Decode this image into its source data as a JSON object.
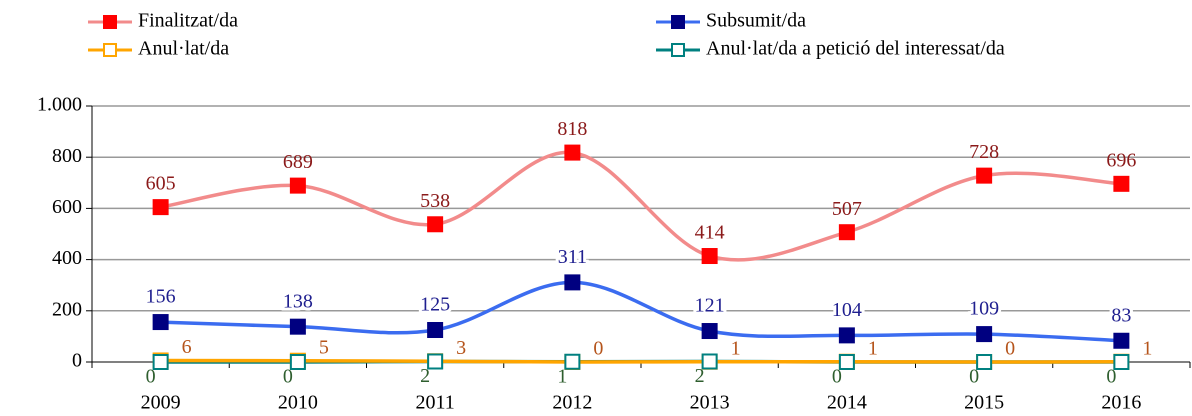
{
  "chart_data": {
    "type": "line",
    "categories": [
      "2009",
      "2010",
      "2011",
      "2012",
      "2013",
      "2014",
      "2015",
      "2016"
    ],
    "series": [
      {
        "name": "Finalitzat/da",
        "color": "#f28b8b",
        "marker_fill": "#ff0000",
        "marker_stroke": "#ff0000",
        "label_color": "#8b1a1a",
        "values": [
          605,
          689,
          538,
          818,
          414,
          507,
          728,
          696
        ]
      },
      {
        "name": "Subsumit/da",
        "color": "#3b6cf0",
        "marker_fill": "#000080",
        "marker_stroke": "#000080",
        "label_color": "#1f1f8f",
        "values": [
          156,
          138,
          125,
          311,
          121,
          104,
          109,
          83
        ]
      },
      {
        "name": "Anul·lat/da",
        "color": "#ffa500",
        "marker_fill": "#ffffff",
        "marker_stroke": "#ffa500",
        "label_color": "#b5541b",
        "values": [
          6,
          5,
          3,
          0,
          1,
          1,
          0,
          1
        ]
      },
      {
        "name": "Anul·lat/da a petició del interessat/da",
        "color": "#008080",
        "marker_fill": "#ffffff",
        "marker_stroke": "#008080",
        "label_color": "#2e5e2e",
        "values": [
          0,
          0,
          2,
          1,
          2,
          0,
          0,
          0
        ]
      }
    ],
    "ylim": [
      0,
      1000
    ],
    "yticks": [
      0,
      200,
      400,
      600,
      800,
      {
        "value": 1000,
        "label": "1.000"
      }
    ],
    "grid": true,
    "smooth": true
  }
}
